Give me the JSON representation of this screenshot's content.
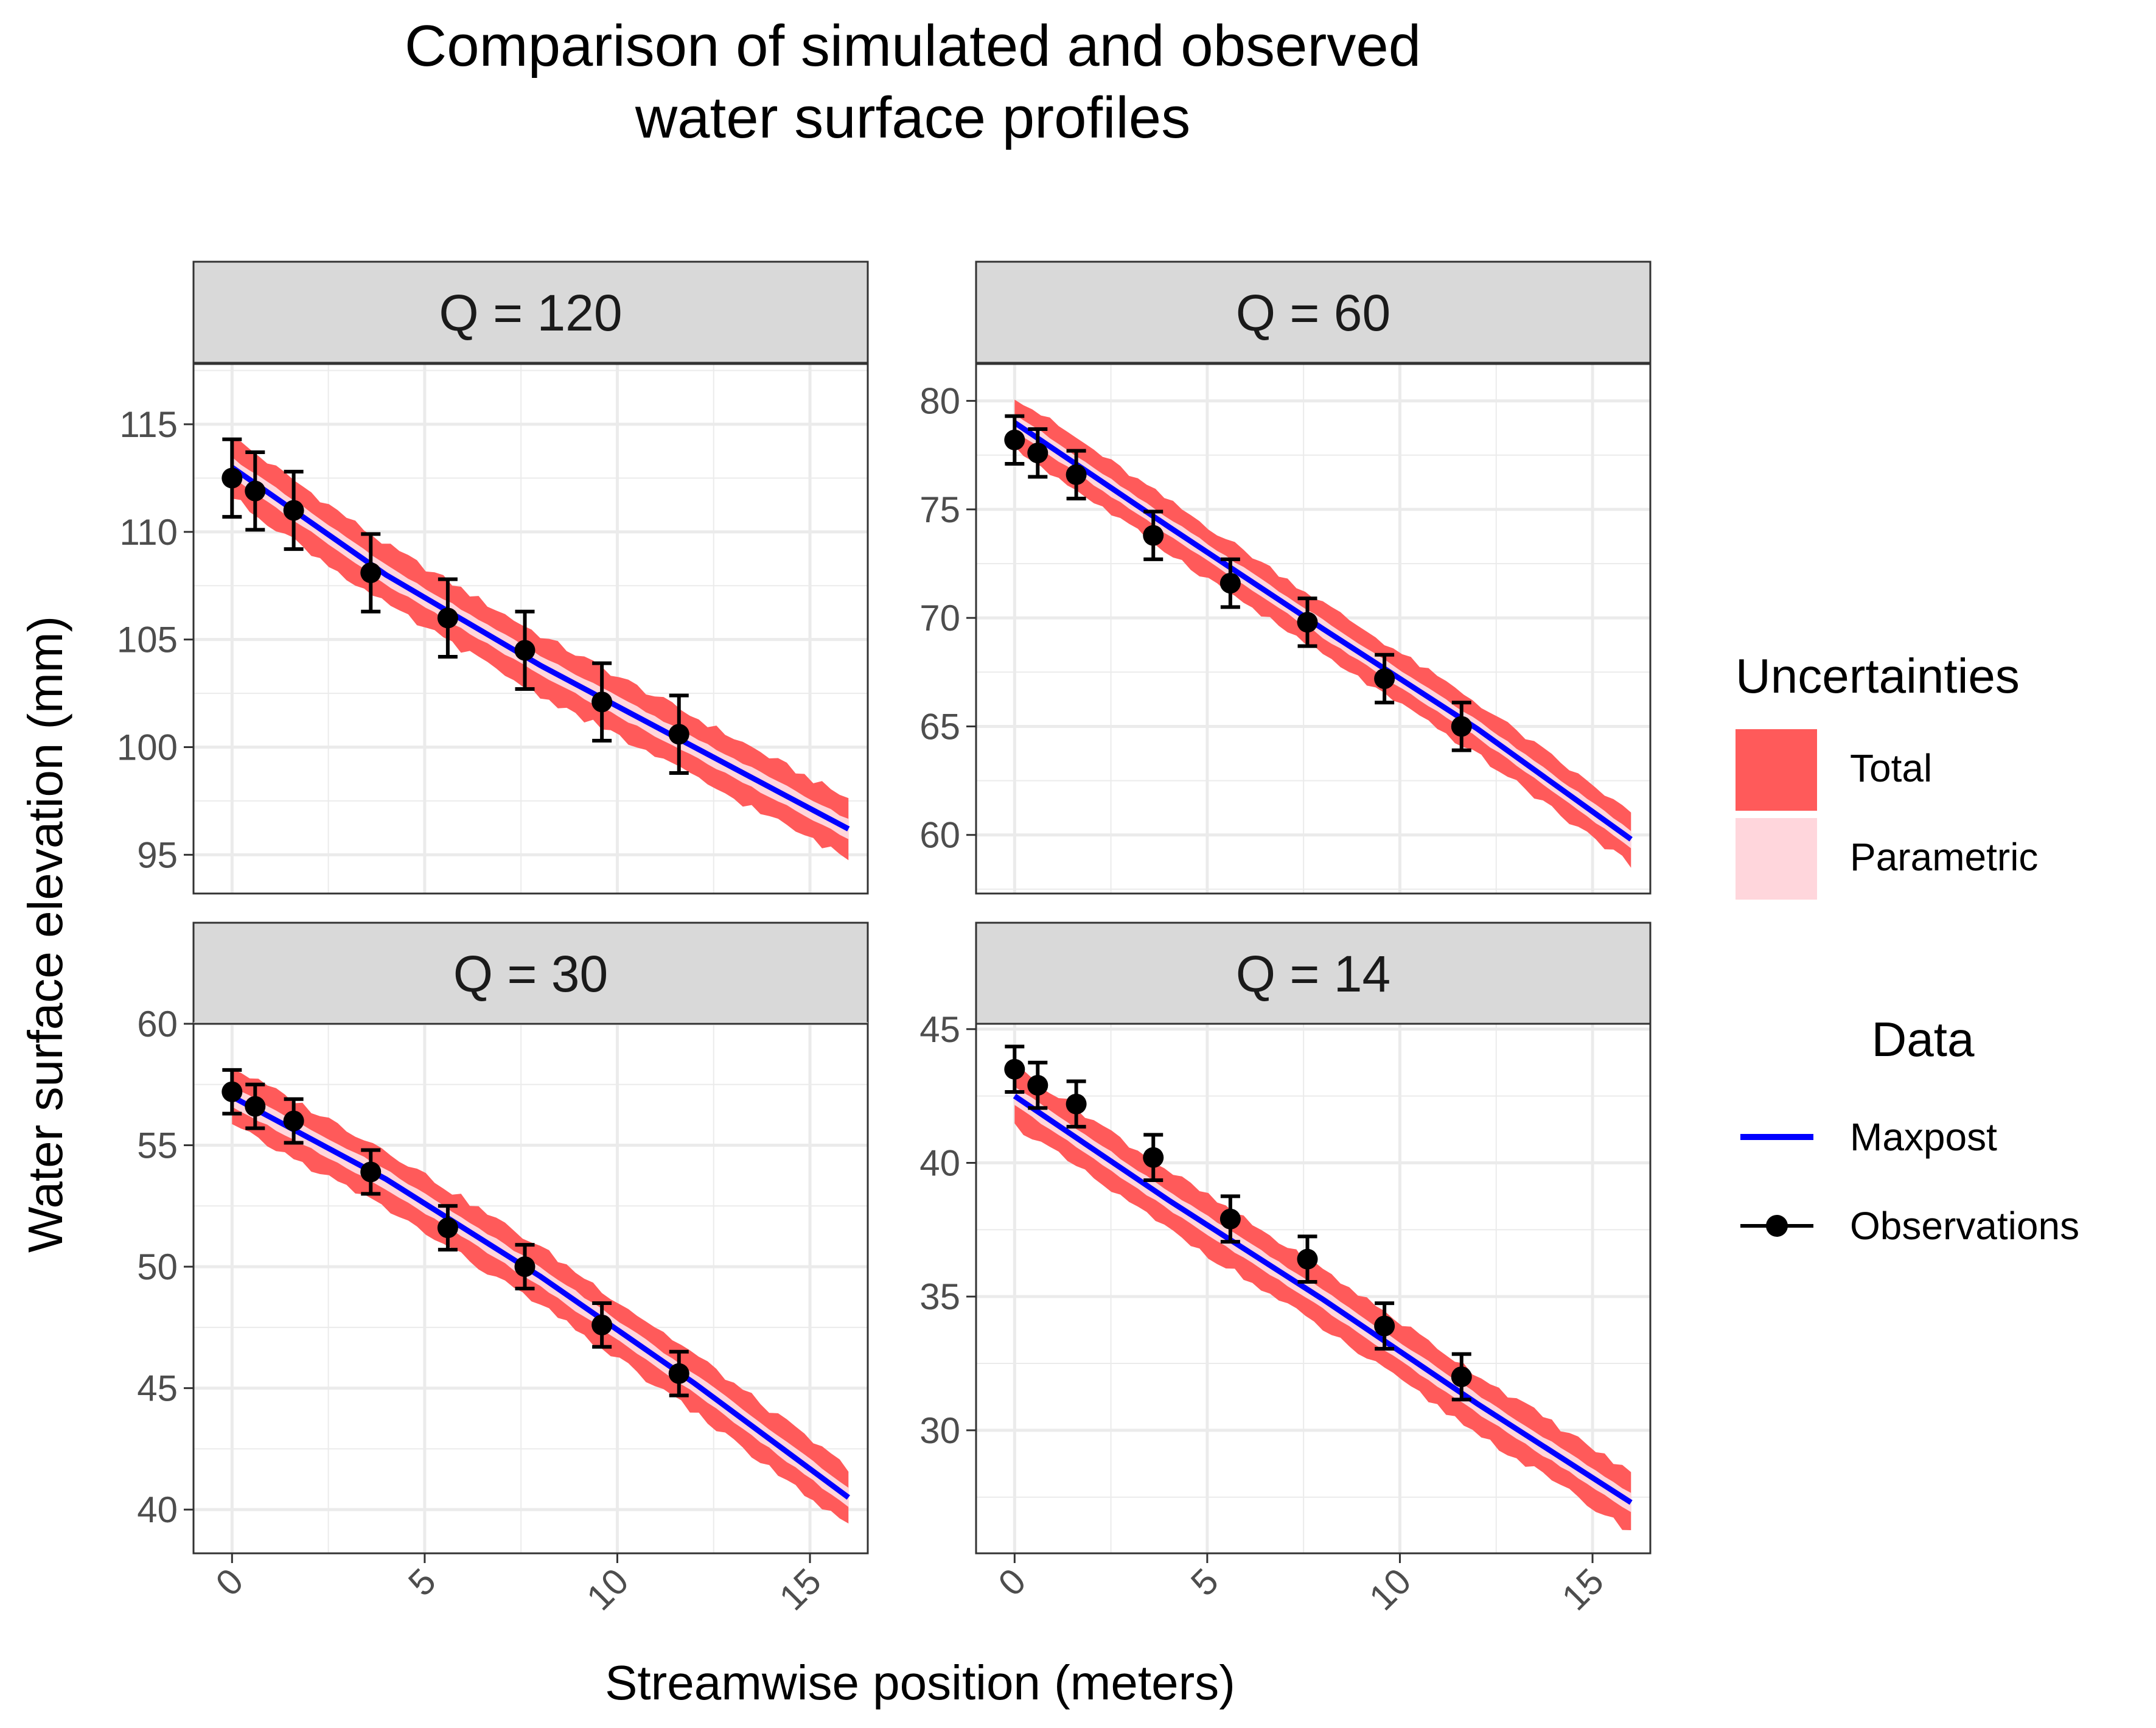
{
  "title_line1": "Comparison of simulated and observed",
  "title_line2": "water surface profiles",
  "xlabel": "Streamwise position (meters)",
  "ylabel": "Water surface elevation (mm)",
  "legend": {
    "uncertainties_title": "Uncertainties",
    "total_label": "Total",
    "parametric_label": "Parametric",
    "data_title": "Data",
    "maxpost_label": "Maxpost",
    "observations_label": "Observations"
  },
  "colors": {
    "total": "#FF5A5A",
    "parametric": "#FFD6DC",
    "maxpost": "#0000FF",
    "observations": "#000000",
    "strip_fill": "#D9D9D9",
    "grid": "#EBEBEB"
  },
  "chart_data": [
    {
      "type": "line",
      "facet": "Q = 120",
      "xlim": [
        -1,
        16.5
      ],
      "ylim": [
        93.2,
        117.8
      ],
      "x_ticks": [
        0,
        5,
        10,
        15
      ],
      "y_ticks": [
        95,
        100,
        105,
        110,
        115
      ],
      "maxpost": {
        "x": [
          0,
          4,
          8,
          12,
          16
        ],
        "y": [
          113.0,
          108.0,
          103.8,
          100.0,
          96.2
        ]
      },
      "total_band_halfwidth": 1.4,
      "parametric_band_halfwidth": 0.45,
      "observations": {
        "x": [
          0,
          0.6,
          1.6,
          3.6,
          5.6,
          7.6,
          9.6,
          11.6
        ],
        "y": [
          112.5,
          111.9,
          111.0,
          108.1,
          106.0,
          104.5,
          102.1,
          100.6
        ],
        "err": [
          1.8,
          1.8,
          1.8,
          1.8,
          1.8,
          1.8,
          1.8,
          1.8
        ]
      }
    },
    {
      "type": "line",
      "facet": "Q = 60",
      "xlim": [
        -1,
        16.5
      ],
      "ylim": [
        57.3,
        81.7
      ],
      "x_ticks": [
        0,
        5,
        10,
        15
      ],
      "y_ticks": [
        60,
        65,
        70,
        75,
        80
      ],
      "maxpost": {
        "x": [
          0,
          4,
          8,
          12,
          16
        ],
        "y": [
          79.0,
          74.2,
          69.5,
          64.9,
          59.8
        ]
      },
      "total_band_halfwidth": 1.2,
      "parametric_band_halfwidth": 0.4,
      "observations": {
        "x": [
          0,
          0.6,
          1.6,
          3.6,
          5.6,
          7.6,
          9.6,
          11.6
        ],
        "y": [
          78.2,
          77.6,
          76.6,
          73.8,
          71.6,
          69.8,
          67.2,
          65.0
        ],
        "err": [
          1.1,
          1.1,
          1.1,
          1.1,
          1.1,
          1.1,
          1.1,
          1.1
        ]
      }
    },
    {
      "type": "line",
      "facet": "Q = 30",
      "xlim": [
        -1,
        16.5
      ],
      "ylim": [
        38.2,
        60.0
      ],
      "x_ticks": [
        0,
        5,
        10,
        15
      ],
      "y_ticks": [
        40,
        45,
        50,
        55,
        60
      ],
      "maxpost": {
        "x": [
          0,
          4,
          8,
          12,
          16
        ],
        "y": [
          57.0,
          53.6,
          49.6,
          45.2,
          40.5
        ]
      },
      "total_band_halfwidth": 1.2,
      "parametric_band_halfwidth": 0.4,
      "observations": {
        "x": [
          0,
          0.6,
          1.6,
          3.6,
          5.6,
          7.6,
          9.6,
          11.6
        ],
        "y": [
          57.2,
          56.6,
          56.0,
          53.9,
          51.6,
          50.0,
          47.6,
          45.6
        ],
        "err": [
          0.9,
          0.9,
          0.9,
          0.9,
          0.9,
          0.9,
          0.9,
          0.9
        ]
      }
    },
    {
      "type": "line",
      "facet": "Q = 14",
      "xlim": [
        -1,
        16.5
      ],
      "ylim": [
        25.4,
        45.2
      ],
      "x_ticks": [
        0,
        5,
        10,
        15
      ],
      "y_ticks": [
        30,
        35,
        40,
        45
      ],
      "maxpost": {
        "x": [
          0,
          4,
          8,
          12,
          16
        ],
        "y": [
          42.5,
          38.6,
          34.9,
          31.0,
          27.3
        ]
      },
      "total_band_halfwidth": 1.1,
      "parametric_band_halfwidth": 0.35,
      "observations": {
        "x": [
          0,
          0.6,
          1.6,
          3.6,
          5.6,
          7.6,
          9.6,
          11.6
        ],
        "y": [
          43.5,
          42.9,
          42.2,
          40.2,
          37.9,
          36.4,
          33.9,
          32.0
        ],
        "err": [
          0.85,
          0.85,
          0.85,
          0.85,
          0.85,
          0.85,
          0.85,
          0.85
        ]
      }
    }
  ]
}
